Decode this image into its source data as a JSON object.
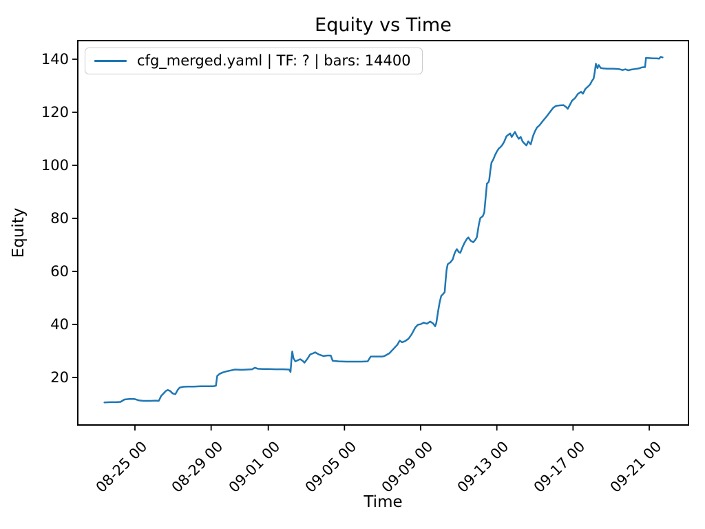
{
  "chart_data": {
    "type": "line",
    "title": "Equity vs Time",
    "xlabel": "Time",
    "ylabel": "Equity",
    "legend": [
      "cfg_merged.yaml | TF: ? | bars: 14400"
    ],
    "line_color": "#1f77b4",
    "grid": false,
    "legend_position": "upper left",
    "x_unit": "days since 08-23 00:00",
    "xlim": [
      -1.0,
      31.06
    ],
    "ylim": [
      2.1,
      147.0
    ],
    "xticks": [
      {
        "d": 2,
        "label": "08-25 00"
      },
      {
        "d": 6,
        "label": "08-29 00"
      },
      {
        "d": 9,
        "label": "09-01 00"
      },
      {
        "d": 13,
        "label": "09-05 00"
      },
      {
        "d": 17,
        "label": "09-09 00"
      },
      {
        "d": 21,
        "label": "09-13 00"
      },
      {
        "d": 25,
        "label": "09-17 00"
      },
      {
        "d": 29,
        "label": "09-21 00"
      }
    ],
    "yticks": [
      {
        "v": 20,
        "label": "20"
      },
      {
        "v": 40,
        "label": "40"
      },
      {
        "v": 60,
        "label": "60"
      },
      {
        "v": 80,
        "label": "80"
      },
      {
        "v": 100,
        "label": "100"
      },
      {
        "v": 120,
        "label": "120"
      },
      {
        "v": 140,
        "label": "140"
      }
    ],
    "series": [
      {
        "name": "cfg_merged.yaml | TF: ? | bars: 14400",
        "points": [
          [
            0.4,
            10.6
          ],
          [
            0.7,
            10.7
          ],
          [
            1.0,
            10.7
          ],
          [
            1.24,
            10.8
          ],
          [
            1.45,
            11.7
          ],
          [
            1.7,
            11.9
          ],
          [
            1.98,
            11.9
          ],
          [
            2.2,
            11.4
          ],
          [
            2.45,
            11.2
          ],
          [
            2.8,
            11.2
          ],
          [
            3.1,
            11.3
          ],
          [
            3.25,
            11.2
          ],
          [
            3.38,
            13.1
          ],
          [
            3.5,
            14.0
          ],
          [
            3.62,
            14.9
          ],
          [
            3.72,
            15.3
          ],
          [
            3.85,
            14.9
          ],
          [
            3.98,
            14.0
          ],
          [
            4.12,
            13.7
          ],
          [
            4.25,
            15.4
          ],
          [
            4.35,
            16.2
          ],
          [
            4.55,
            16.5
          ],
          [
            4.8,
            16.6
          ],
          [
            5.1,
            16.6
          ],
          [
            5.45,
            16.7
          ],
          [
            5.8,
            16.7
          ],
          [
            6.1,
            16.7
          ],
          [
            6.25,
            16.9
          ],
          [
            6.32,
            20.6
          ],
          [
            6.45,
            21.4
          ],
          [
            6.6,
            21.9
          ],
          [
            6.8,
            22.3
          ],
          [
            7.05,
            22.7
          ],
          [
            7.25,
            23.0
          ],
          [
            7.6,
            22.9
          ],
          [
            7.9,
            23.0
          ],
          [
            8.15,
            23.1
          ],
          [
            8.3,
            23.7
          ],
          [
            8.45,
            23.3
          ],
          [
            8.7,
            23.2
          ],
          [
            9.0,
            23.2
          ],
          [
            9.4,
            23.1
          ],
          [
            9.8,
            23.1
          ],
          [
            10.1,
            23.0
          ],
          [
            10.17,
            22.1
          ],
          [
            10.22,
            27.0
          ],
          [
            10.26,
            29.8
          ],
          [
            10.32,
            27.3
          ],
          [
            10.42,
            26.1
          ],
          [
            10.55,
            26.5
          ],
          [
            10.68,
            26.9
          ],
          [
            10.8,
            26.3
          ],
          [
            10.9,
            25.6
          ],
          [
            11.05,
            27.0
          ],
          [
            11.2,
            28.7
          ],
          [
            11.38,
            29.2
          ],
          [
            11.46,
            29.5
          ],
          [
            11.65,
            28.7
          ],
          [
            11.9,
            28.1
          ],
          [
            12.1,
            28.3
          ],
          [
            12.28,
            28.3
          ],
          [
            12.38,
            26.3
          ],
          [
            12.7,
            26.1
          ],
          [
            13.1,
            26.0
          ],
          [
            13.5,
            26.0
          ],
          [
            13.9,
            26.0
          ],
          [
            14.22,
            26.1
          ],
          [
            14.38,
            27.9
          ],
          [
            14.7,
            27.9
          ],
          [
            15.0,
            27.9
          ],
          [
            15.1,
            28.1
          ],
          [
            15.35,
            29.1
          ],
          [
            15.55,
            30.6
          ],
          [
            15.65,
            31.4
          ],
          [
            15.78,
            32.4
          ],
          [
            15.9,
            33.9
          ],
          [
            16.02,
            33.3
          ],
          [
            16.18,
            33.7
          ],
          [
            16.36,
            34.6
          ],
          [
            16.52,
            36.2
          ],
          [
            16.72,
            38.9
          ],
          [
            16.86,
            39.9
          ],
          [
            17.0,
            40.1
          ],
          [
            17.16,
            40.7
          ],
          [
            17.33,
            40.3
          ],
          [
            17.5,
            41.1
          ],
          [
            17.65,
            40.4
          ],
          [
            17.76,
            39.3
          ],
          [
            17.82,
            40.5
          ],
          [
            17.92,
            45.2
          ],
          [
            18.0,
            48.5
          ],
          [
            18.08,
            50.8
          ],
          [
            18.17,
            51.4
          ],
          [
            18.26,
            52.2
          ],
          [
            18.31,
            56.5
          ],
          [
            18.36,
            60.5
          ],
          [
            18.42,
            62.7
          ],
          [
            18.56,
            63.4
          ],
          [
            18.68,
            64.5
          ],
          [
            18.78,
            66.8
          ],
          [
            18.84,
            67.7
          ],
          [
            18.9,
            68.4
          ],
          [
            19.0,
            67.3
          ],
          [
            19.08,
            67.0
          ],
          [
            19.2,
            69.2
          ],
          [
            19.3,
            70.7
          ],
          [
            19.42,
            72.2
          ],
          [
            19.5,
            72.8
          ],
          [
            19.62,
            71.6
          ],
          [
            19.76,
            71.0
          ],
          [
            19.87,
            71.9
          ],
          [
            19.95,
            72.9
          ],
          [
            20.05,
            77.5
          ],
          [
            20.13,
            80.1
          ],
          [
            20.26,
            80.8
          ],
          [
            20.34,
            82.2
          ],
          [
            20.42,
            88.5
          ],
          [
            20.48,
            93.1
          ],
          [
            20.56,
            93.6
          ],
          [
            20.6,
            94.5
          ],
          [
            20.66,
            98.2
          ],
          [
            20.72,
            101.0
          ],
          [
            20.82,
            102.3
          ],
          [
            20.9,
            103.8
          ],
          [
            21.0,
            105.2
          ],
          [
            21.1,
            106.3
          ],
          [
            21.18,
            106.8
          ],
          [
            21.28,
            107.6
          ],
          [
            21.38,
            108.8
          ],
          [
            21.5,
            110.9
          ],
          [
            21.6,
            111.5
          ],
          [
            21.7,
            112.0
          ],
          [
            21.78,
            110.7
          ],
          [
            21.88,
            111.8
          ],
          [
            21.95,
            112.6
          ],
          [
            22.05,
            111.1
          ],
          [
            22.15,
            110.0
          ],
          [
            22.25,
            110.7
          ],
          [
            22.35,
            109.0
          ],
          [
            22.45,
            108.2
          ],
          [
            22.55,
            107.5
          ],
          [
            22.65,
            109.0
          ],
          [
            22.78,
            107.9
          ],
          [
            22.9,
            111.0
          ],
          [
            23.0,
            112.8
          ],
          [
            23.1,
            114.2
          ],
          [
            23.25,
            115.2
          ],
          [
            23.4,
            116.6
          ],
          [
            23.6,
            118.3
          ],
          [
            23.8,
            120.2
          ],
          [
            23.95,
            121.6
          ],
          [
            24.1,
            122.4
          ],
          [
            24.3,
            122.6
          ],
          [
            24.5,
            122.7
          ],
          [
            24.65,
            121.9
          ],
          [
            24.72,
            121.3
          ],
          [
            24.85,
            123.0
          ],
          [
            24.95,
            124.4
          ],
          [
            25.1,
            125.3
          ],
          [
            25.25,
            126.9
          ],
          [
            25.42,
            127.7
          ],
          [
            25.52,
            127.0
          ],
          [
            25.65,
            128.8
          ],
          [
            25.8,
            129.8
          ],
          [
            25.9,
            130.5
          ],
          [
            26.0,
            131.9
          ],
          [
            26.08,
            132.7
          ],
          [
            26.14,
            135.2
          ],
          [
            26.2,
            138.3
          ],
          [
            26.28,
            136.6
          ],
          [
            26.35,
            137.8
          ],
          [
            26.45,
            136.7
          ],
          [
            26.6,
            136.5
          ],
          [
            26.8,
            136.4
          ],
          [
            27.1,
            136.4
          ],
          [
            27.4,
            136.3
          ],
          [
            27.6,
            135.9
          ],
          [
            27.75,
            136.2
          ],
          [
            27.9,
            135.8
          ],
          [
            28.05,
            136.1
          ],
          [
            28.25,
            136.3
          ],
          [
            28.45,
            136.5
          ],
          [
            28.6,
            136.9
          ],
          [
            28.72,
            137.0
          ],
          [
            28.78,
            137.0
          ],
          [
            28.83,
            140.5
          ],
          [
            29.0,
            140.4
          ],
          [
            29.2,
            140.3
          ],
          [
            29.4,
            140.3
          ],
          [
            29.52,
            140.2
          ],
          [
            29.6,
            140.9
          ],
          [
            29.7,
            140.7
          ]
        ]
      }
    ]
  }
}
